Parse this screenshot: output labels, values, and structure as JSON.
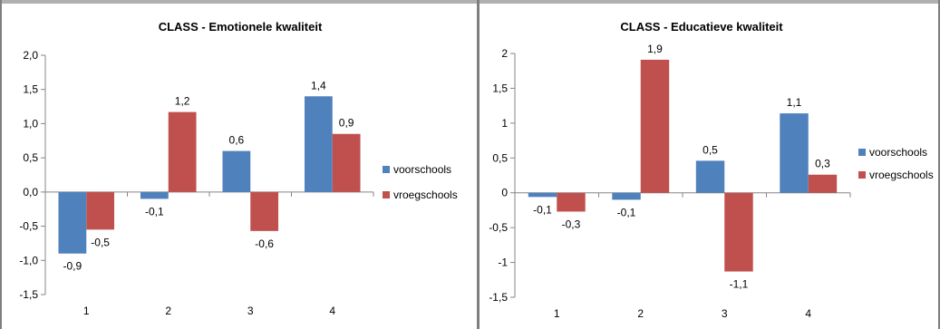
{
  "chart_data": [
    {
      "type": "bar",
      "title": "CLASS - Emotionele kwaliteit",
      "categories": [
        "1",
        "2",
        "3",
        "4"
      ],
      "series": [
        {
          "name": "voorschools",
          "values": [
            -0.9,
            -0.1,
            0.6,
            1.4
          ],
          "labels": [
            "-0,9",
            "-0,1",
            "0,6",
            "1,4"
          ],
          "color": "#4F81BD"
        },
        {
          "name": "vroegschools",
          "values": [
            -0.55,
            1.17,
            -0.57,
            0.85
          ],
          "labels": [
            "-0,5",
            "1,2",
            "-0,6",
            "0,9"
          ],
          "color": "#C0504D"
        }
      ],
      "ylim": [
        -1.5,
        2.0
      ],
      "yticks": [
        2.0,
        1.5,
        1.0,
        0.5,
        0.0,
        -0.5,
        -1.0,
        -1.5
      ],
      "ytick_labels": [
        "2,0",
        "1,5",
        "1,0",
        "0,5",
        "0,0",
        "-0,5",
        "-1,0",
        "-1,5"
      ],
      "legend_position": "right",
      "xlabel": "",
      "ylabel": ""
    },
    {
      "type": "bar",
      "title": "CLASS - Educatieve kwaliteit",
      "categories": [
        "1",
        "2",
        "3",
        "4"
      ],
      "series": [
        {
          "name": "voorschools",
          "values": [
            -0.06,
            -0.1,
            0.46,
            1.14
          ],
          "labels": [
            "-0,1",
            "-0,1",
            "0,5",
            "1,1"
          ],
          "color": "#4F81BD"
        },
        {
          "name": "vroegschools",
          "values": [
            -0.27,
            1.91,
            -1.13,
            0.26
          ],
          "labels": [
            "-0,3",
            "1,9",
            "-1,1",
            "0,3"
          ],
          "color": "#C0504D"
        }
      ],
      "ylim": [
        -1.5,
        2.0
      ],
      "yticks": [
        2,
        1.5,
        1,
        0.5,
        0,
        -0.5,
        -1,
        -1.5
      ],
      "ytick_labels": [
        "2",
        "1,5",
        "1",
        "0,5",
        "0",
        "-0,5",
        "-1",
        "-1,5"
      ],
      "legend_position": "right",
      "xlabel": "",
      "ylabel": ""
    }
  ]
}
